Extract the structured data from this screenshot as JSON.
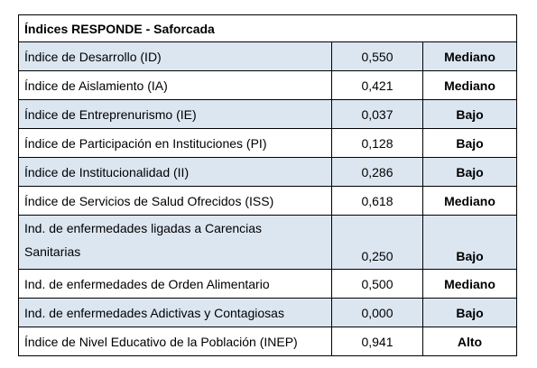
{
  "header": {
    "title": "Índices RESPONDE - Saforcada"
  },
  "table": {
    "rows": [
      [
        "Índice de Desarrollo (ID)",
        "0,550",
        "Mediano"
      ],
      [
        "Índice de Aislamiento (IA)",
        "0,421",
        "Mediano"
      ],
      [
        "Índice de Entreprenurismo (IE)",
        "0,037",
        "Bajo"
      ],
      [
        "Índice de Participación en Instituciones (PI)",
        "0,128",
        "Bajo"
      ],
      [
        "Índice de Institucionalidad (II)",
        "0,286",
        "Bajo"
      ],
      [
        "Índice de Servicios de Salud Ofrecidos (ISS)",
        "0,618",
        "Mediano"
      ],
      [
        "Ind. de enfermedades ligadas a Carencias Sanitarias",
        "0,250",
        "Bajo"
      ],
      [
        "Ind. de enfermedades de Orden Alimentario",
        "0,500",
        "Mediano"
      ],
      [
        "Ind. de enfermedades Adictivas y Contagiosas",
        "0,000",
        "Bajo"
      ],
      [
        "Índice de Nivel Educativo de la Población (INEP)",
        "0,941",
        "Alto"
      ]
    ]
  }
}
